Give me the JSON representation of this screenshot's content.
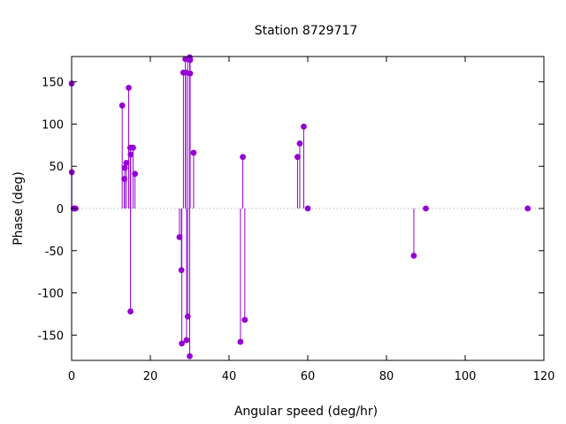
{
  "chart_data": {
    "type": "stem",
    "title": "Station 8729717",
    "xlabel": "Angular speed (deg/hr)",
    "ylabel": "Phase (deg)",
    "xlim": [
      0,
      120
    ],
    "ylim": [
      -180,
      180
    ],
    "xticks": [
      "0",
      "20",
      "40",
      "60",
      "80",
      "100",
      "120"
    ],
    "yticks": [
      "-150",
      "-100",
      "-50",
      "0",
      "50",
      "100",
      "150"
    ],
    "grid": false,
    "zero_line": "dotted",
    "series_color": "#9400d3",
    "points": [
      {
        "x": 0.0,
        "y": 148
      },
      {
        "x": 0.04,
        "y": 43
      },
      {
        "x": 0.5,
        "y": 0
      },
      {
        "x": 0.8,
        "y": 0
      },
      {
        "x": 1.0,
        "y": 0
      },
      {
        "x": 12.85,
        "y": 122
      },
      {
        "x": 13.4,
        "y": 35
      },
      {
        "x": 13.5,
        "y": 48
      },
      {
        "x": 13.9,
        "y": 54
      },
      {
        "x": 14.5,
        "y": 143
      },
      {
        "x": 14.9,
        "y": 72
      },
      {
        "x": 15.0,
        "y": 64
      },
      {
        "x": 14.96,
        "y": -122
      },
      {
        "x": 15.6,
        "y": 72
      },
      {
        "x": 16.1,
        "y": 41
      },
      {
        "x": 27.4,
        "y": -34
      },
      {
        "x": 27.9,
        "y": -73
      },
      {
        "x": 28.0,
        "y": -160
      },
      {
        "x": 28.4,
        "y": 161
      },
      {
        "x": 28.9,
        "y": 177
      },
      {
        "x": 29.0,
        "y": 161
      },
      {
        "x": 29.2,
        "y": -156
      },
      {
        "x": 29.5,
        "y": -128
      },
      {
        "x": 29.5,
        "y": 177
      },
      {
        "x": 30.0,
        "y": 179
      },
      {
        "x": 30.0,
        "y": -175
      },
      {
        "x": 30.1,
        "y": 160
      },
      {
        "x": 30.1,
        "y": 176
      },
      {
        "x": 31.0,
        "y": 66
      },
      {
        "x": 42.9,
        "y": -158
      },
      {
        "x": 43.5,
        "y": 61
      },
      {
        "x": 44.0,
        "y": -132
      },
      {
        "x": 57.4,
        "y": 61
      },
      {
        "x": 57.97,
        "y": 77
      },
      {
        "x": 58.98,
        "y": 97
      },
      {
        "x": 60.0,
        "y": 0
      },
      {
        "x": 86.95,
        "y": -56
      },
      {
        "x": 90.0,
        "y": 0
      },
      {
        "x": 115.9,
        "y": 0
      }
    ]
  }
}
